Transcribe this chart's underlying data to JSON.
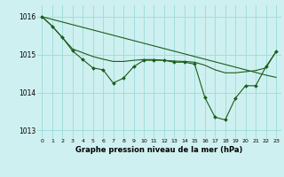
{
  "x": [
    0,
    1,
    2,
    3,
    4,
    5,
    6,
    7,
    8,
    9,
    10,
    11,
    12,
    13,
    14,
    15,
    16,
    17,
    18,
    19,
    20,
    21,
    22,
    23
  ],
  "trend": [
    1016.0,
    1015.93,
    1015.86,
    1015.79,
    1015.72,
    1015.65,
    1015.58,
    1015.51,
    1015.44,
    1015.37,
    1015.3,
    1015.23,
    1015.16,
    1015.09,
    1015.02,
    1014.95,
    1014.88,
    1014.81,
    1014.74,
    1014.67,
    1014.6,
    1014.53,
    1014.46,
    1014.4
  ],
  "measured": [
    1016.0,
    1015.75,
    1015.45,
    1015.1,
    1014.87,
    1014.65,
    1014.6,
    1014.25,
    1014.38,
    1014.68,
    1014.85,
    1014.85,
    1014.85,
    1014.8,
    1014.8,
    1014.75,
    1013.87,
    1013.35,
    1013.28,
    1013.85,
    1014.18,
    1014.18,
    1014.68,
    1015.08
  ],
  "smooth": [
    1016.0,
    1015.75,
    1015.45,
    1015.15,
    1015.05,
    1014.95,
    1014.88,
    1014.82,
    1014.82,
    1014.85,
    1014.87,
    1014.87,
    1014.85,
    1014.83,
    1014.82,
    1014.8,
    1014.72,
    1014.6,
    1014.52,
    1014.52,
    1014.55,
    1014.58,
    1014.65,
    1015.08
  ],
  "background_color": "#cff0f0",
  "grid_color": "#a0dede",
  "line_color": "#1a5c1a",
  "ylim_min": 1012.8,
  "ylim_max": 1016.3,
  "yticks": [
    1013,
    1014,
    1015,
    1016
  ],
  "xlabel": "Graphe pression niveau de la mer (hPa)"
}
